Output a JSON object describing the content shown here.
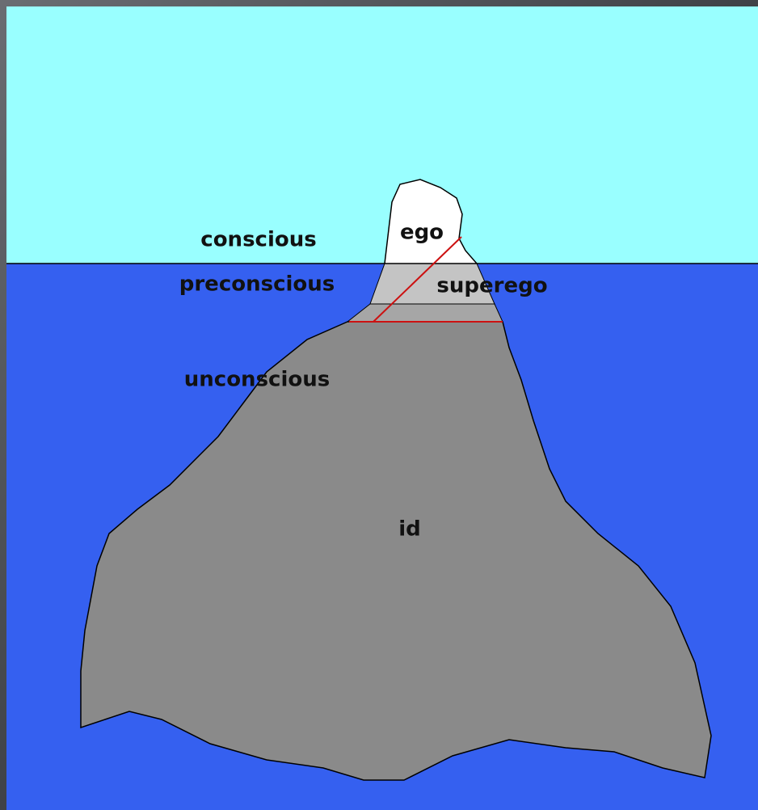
{
  "levels": [
    "conscious",
    "preconscious",
    "unconscious"
  ],
  "parts": [
    "ego",
    "superego",
    "id"
  ]
}
